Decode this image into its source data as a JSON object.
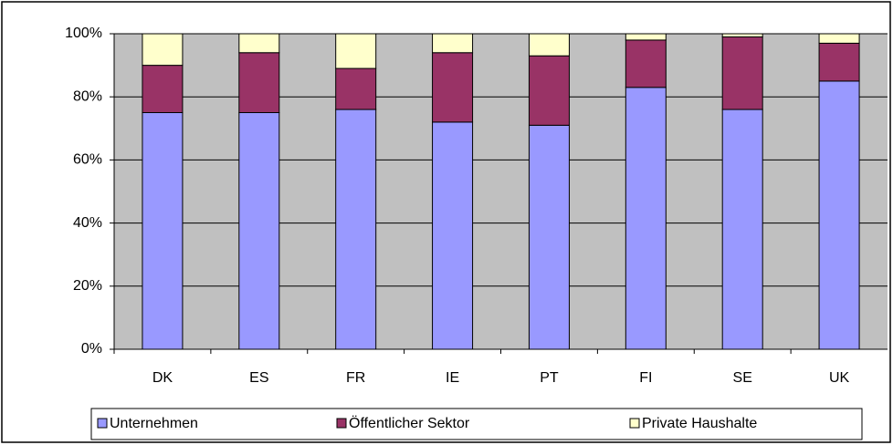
{
  "chart_data": {
    "type": "stacked_bar",
    "categories": [
      "DK",
      "ES",
      "FR",
      "IE",
      "PT",
      "FI",
      "SE",
      "UK"
    ],
    "series": [
      {
        "name": "Unternehmen",
        "color": "#9999ff",
        "values": [
          75,
          75,
          76,
          72,
          71,
          83,
          76,
          85
        ]
      },
      {
        "name": "Öffentlicher Sektor",
        "color": "#993366",
        "values": [
          15,
          19,
          13,
          22,
          22,
          15,
          23,
          12
        ]
      },
      {
        "name": "Private Haushalte",
        "color": "#ffffcc",
        "values": [
          10,
          6,
          11,
          6,
          7,
          2,
          1,
          3
        ]
      }
    ],
    "ylim": [
      0,
      100
    ],
    "yticks": [
      {
        "value": 0,
        "label": "0%"
      },
      {
        "value": 20,
        "label": "20%"
      },
      {
        "value": 40,
        "label": "40%"
      },
      {
        "value": 60,
        "label": "60%"
      },
      {
        "value": 80,
        "label": "80%"
      },
      {
        "value": 100,
        "label": "100%"
      }
    ],
    "grid": true,
    "legend": "bottom"
  }
}
